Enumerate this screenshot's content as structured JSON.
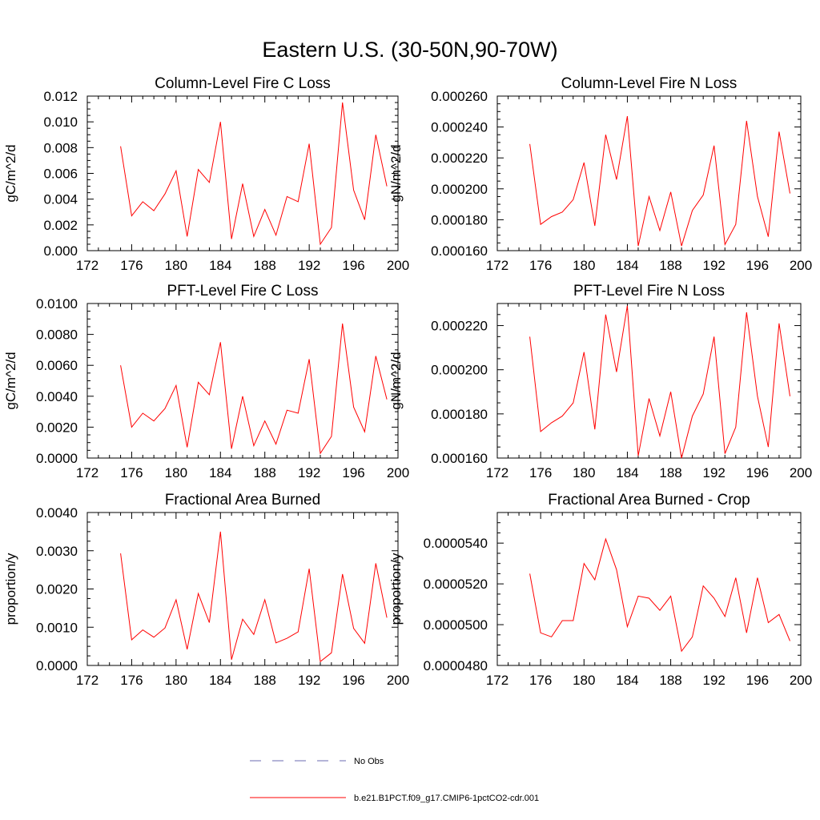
{
  "figure": {
    "title": "Eastern U.S. (30-50N,90-70W)",
    "line_color": "#ff0000",
    "obs_color": "#6b6bb0"
  },
  "legend": {
    "placement": "bottom-center",
    "entries": [
      {
        "label": "No Obs",
        "style": "dashed",
        "color": "#6b6bb0"
      },
      {
        "label": "b.e21.B1PCT.f09_g17.CMIP6-1pctCO2-cdr.001",
        "style": "solid",
        "color": "#ff0000"
      }
    ]
  },
  "chart_data": [
    {
      "type": "line",
      "title": "Column-Level Fire C Loss",
      "ylabel": "gC/m^2/d",
      "xlim": [
        172,
        200
      ],
      "ylim": [
        0,
        0.012
      ],
      "xticks": [
        "172",
        "176",
        "180",
        "184",
        "188",
        "192",
        "196",
        "200"
      ],
      "yticks": [
        "0.000",
        "0.002",
        "0.004",
        "0.006",
        "0.008",
        "0.010",
        "0.012"
      ],
      "x": [
        175,
        176,
        177,
        178,
        179,
        180,
        181,
        182,
        183,
        184,
        185,
        186,
        187,
        188,
        189,
        190,
        191,
        192,
        193,
        194,
        195,
        196,
        197,
        198,
        199
      ],
      "series": [
        {
          "values": [
            0.0081,
            0.0027,
            0.0038,
            0.0031,
            0.0044,
            0.0062,
            0.0011,
            0.0063,
            0.0053,
            0.01,
            0.0009,
            0.0052,
            0.0011,
            0.0032,
            0.0012,
            0.0042,
            0.0038,
            0.0083,
            0.0005,
            0.0018,
            0.0115,
            0.0047,
            0.0024,
            0.009,
            0.005
          ]
        }
      ]
    },
    {
      "type": "line",
      "title": "Column-Level Fire N Loss",
      "ylabel": "gN/m^2/d",
      "xlim": [
        172,
        200
      ],
      "ylim": [
        0.00016,
        0.00026
      ],
      "xticks": [
        "172",
        "176",
        "180",
        "184",
        "188",
        "192",
        "196",
        "200"
      ],
      "yticks": [
        "0.000160",
        "0.000180",
        "0.000200",
        "0.000220",
        "0.000240",
        "0.000260"
      ],
      "x": [
        175,
        176,
        177,
        178,
        179,
        180,
        181,
        182,
        183,
        184,
        185,
        186,
        187,
        188,
        189,
        190,
        191,
        192,
        193,
        194,
        195,
        196,
        197,
        198,
        199
      ],
      "series": [
        {
          "values": [
            0.000229,
            0.000177,
            0.000182,
            0.000185,
            0.000193,
            0.000217,
            0.000176,
            0.000235,
            0.000206,
            0.000247,
            0.000163,
            0.000195,
            0.000173,
            0.000198,
            0.000163,
            0.000186,
            0.000196,
            0.000228,
            0.000164,
            0.000177,
            0.000244,
            0.000195,
            0.000169,
            0.000237,
            0.000197
          ]
        }
      ]
    },
    {
      "type": "line",
      "title": "PFT-Level Fire C Loss",
      "ylabel": "gC/m^2/d",
      "xlim": [
        172,
        200
      ],
      "ylim": [
        0,
        0.01
      ],
      "xticks": [
        "172",
        "176",
        "180",
        "184",
        "188",
        "192",
        "196",
        "200"
      ],
      "yticks": [
        "0.0000",
        "0.0020",
        "0.0040",
        "0.0060",
        "0.0080",
        "0.0100"
      ],
      "x": [
        175,
        176,
        177,
        178,
        179,
        180,
        181,
        182,
        183,
        184,
        185,
        186,
        187,
        188,
        189,
        190,
        191,
        192,
        193,
        194,
        195,
        196,
        197,
        198,
        199
      ],
      "series": [
        {
          "values": [
            0.006,
            0.002,
            0.0029,
            0.0024,
            0.0032,
            0.0047,
            0.0007,
            0.0049,
            0.0041,
            0.0075,
            0.0006,
            0.004,
            0.0008,
            0.0024,
            0.0009,
            0.0031,
            0.0029,
            0.0064,
            0.0003,
            0.0014,
            0.0087,
            0.0033,
            0.0017,
            0.0066,
            0.0038
          ]
        }
      ]
    },
    {
      "type": "line",
      "title": "PFT-Level Fire N Loss",
      "ylabel": "gN/m^2/d",
      "xlim": [
        172,
        200
      ],
      "ylim": [
        0.00016,
        0.00023
      ],
      "xticks": [
        "172",
        "176",
        "180",
        "184",
        "188",
        "192",
        "196",
        "200"
      ],
      "yticks": [
        "0.000160",
        "0.000180",
        "0.000200",
        "0.000220"
      ],
      "x": [
        175,
        176,
        177,
        178,
        179,
        180,
        181,
        182,
        183,
        184,
        185,
        186,
        187,
        188,
        189,
        190,
        191,
        192,
        193,
        194,
        195,
        196,
        197,
        198,
        199
      ],
      "series": [
        {
          "values": [
            0.000215,
            0.000172,
            0.000176,
            0.000179,
            0.000185,
            0.000208,
            0.000173,
            0.000225,
            0.000199,
            0.000229,
            0.000161,
            0.000187,
            0.00017,
            0.00019,
            0.00016,
            0.000179,
            0.000189,
            0.000215,
            0.000162,
            0.000174,
            0.000226,
            0.000188,
            0.000165,
            0.000221,
            0.000188
          ]
        }
      ]
    },
    {
      "type": "line",
      "title": "Fractional Area Burned",
      "ylabel": "proportion/y",
      "xlim": [
        172,
        200
      ],
      "ylim": [
        0,
        0.004
      ],
      "xticks": [
        "172",
        "176",
        "180",
        "184",
        "188",
        "192",
        "196",
        "200"
      ],
      "yticks": [
        "0.0000",
        "0.0010",
        "0.0020",
        "0.0030",
        "0.0040"
      ],
      "x": [
        175,
        176,
        177,
        178,
        179,
        180,
        181,
        182,
        183,
        184,
        185,
        186,
        187,
        188,
        189,
        190,
        191,
        192,
        193,
        194,
        195,
        196,
        197,
        198,
        199
      ],
      "series": [
        {
          "values": [
            0.00293,
            0.00067,
            0.00093,
            0.00074,
            0.00098,
            0.00172,
            0.00042,
            0.00188,
            0.00112,
            0.0035,
            0.00015,
            0.00121,
            0.00081,
            0.00172,
            0.00059,
            0.00071,
            0.00088,
            0.00253,
            0.0001,
            0.00033,
            0.00239,
            0.00097,
            0.00058,
            0.00267,
            0.00125
          ]
        }
      ]
    },
    {
      "type": "line",
      "title": "Fractional Area Burned - Crop",
      "ylabel": "proportion/y",
      "xlim": [
        172,
        200
      ],
      "ylim": [
        4.8e-05,
        5.55e-05
      ],
      "xticks": [
        "172",
        "176",
        "180",
        "184",
        "188",
        "192",
        "196",
        "200"
      ],
      "yticks": [
        "0.0000480",
        "0.0000500",
        "0.0000520",
        "0.0000540"
      ],
      "x": [
        175,
        176,
        177,
        178,
        179,
        180,
        181,
        182,
        183,
        184,
        185,
        186,
        187,
        188,
        189,
        190,
        191,
        192,
        193,
        194,
        195,
        196,
        197,
        198,
        199
      ],
      "series": [
        {
          "values": [
            5.25e-05,
            4.96e-05,
            4.94e-05,
            5.02e-05,
            5.02e-05,
            5.3e-05,
            5.22e-05,
            5.42e-05,
            5.27e-05,
            4.99e-05,
            5.14e-05,
            5.13e-05,
            5.07e-05,
            5.14e-05,
            4.87e-05,
            4.94e-05,
            5.19e-05,
            5.13e-05,
            5.04e-05,
            5.23e-05,
            4.96e-05,
            5.23e-05,
            5.01e-05,
            5.05e-05,
            4.92e-05
          ]
        }
      ]
    }
  ]
}
